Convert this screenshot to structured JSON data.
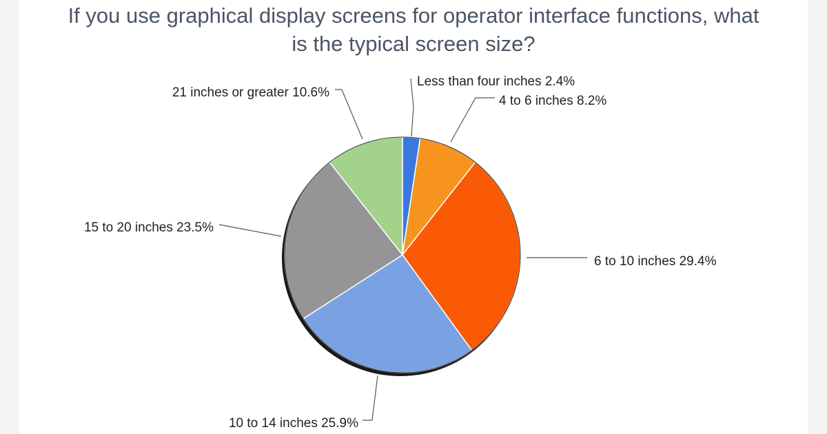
{
  "chart_data": {
    "type": "pie",
    "title_lines": [
      "If you use graphical display screens for operator interface functions, what",
      "is the typical screen size?"
    ],
    "slices": [
      {
        "label": "Less than four inches",
        "value": 2.4,
        "display": "2.4%",
        "color": "#3a78e0"
      },
      {
        "label": "4 to 6 inches",
        "value": 8.2,
        "display": "8.2%",
        "color": "#f7941d"
      },
      {
        "label": "6 to 10 inches",
        "value": 29.4,
        "display": "29.4%",
        "color": "#fa5a05"
      },
      {
        "label": "10 to 14 inches",
        "value": 25.9,
        "display": "25.9%",
        "color": "#7aa2e3"
      },
      {
        "label": "15 to 20 inches",
        "value": 23.5,
        "display": "23.5%",
        "color": "#959598"
      },
      {
        "label": "21 inches or greater",
        "value": 10.6,
        "display": "10.6%",
        "color": "#a3d28b"
      }
    ],
    "start_angle": "12 o'clock",
    "direction": "clockwise",
    "legend": "none",
    "data_labels": "outside with leader lines"
  }
}
